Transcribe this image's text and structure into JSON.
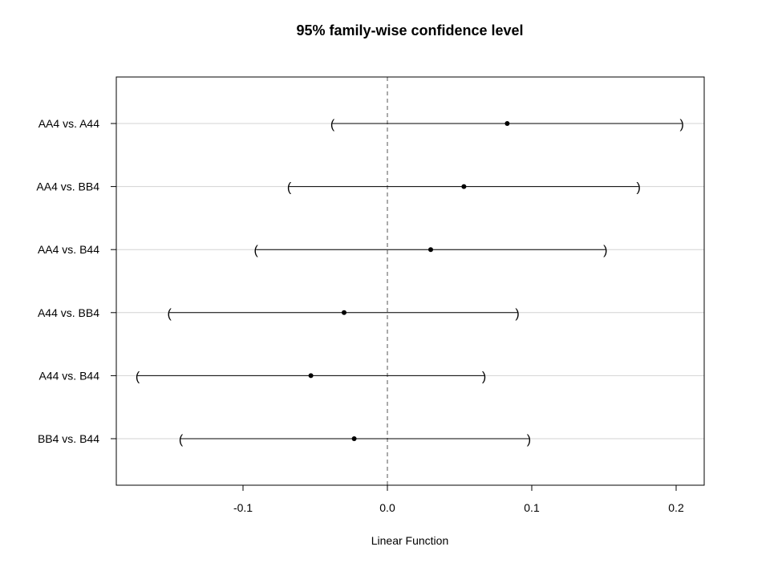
{
  "chart_data": {
    "type": "scatter",
    "title": "95% family-wise confidence level",
    "xlabel": "Linear Function",
    "ylabel": "",
    "xlim": [
      -0.185,
      0.22
    ],
    "x_ticks": [
      -0.1,
      0.0,
      0.1,
      0.2
    ],
    "x_tick_labels": [
      "-0.1",
      "0.0",
      "0.1",
      "0.2"
    ],
    "reference_line": 0.0,
    "grid": "horizontal",
    "comparisons": [
      {
        "label": "AA4 vs. A44",
        "estimate": 0.083,
        "lwr": -0.038,
        "upr": 0.204
      },
      {
        "label": "AA4 vs. BB4",
        "estimate": 0.053,
        "lwr": -0.068,
        "upr": 0.174
      },
      {
        "label": "AA4 vs. B44",
        "estimate": 0.03,
        "lwr": -0.091,
        "upr": 0.151
      },
      {
        "label": "A44 vs. BB4",
        "estimate": -0.03,
        "lwr": -0.151,
        "upr": 0.09
      },
      {
        "label": "A44 vs. B44",
        "estimate": -0.053,
        "lwr": -0.173,
        "upr": 0.067
      },
      {
        "label": "BB4 vs. B44",
        "estimate": -0.023,
        "lwr": -0.143,
        "upr": 0.098
      }
    ]
  }
}
